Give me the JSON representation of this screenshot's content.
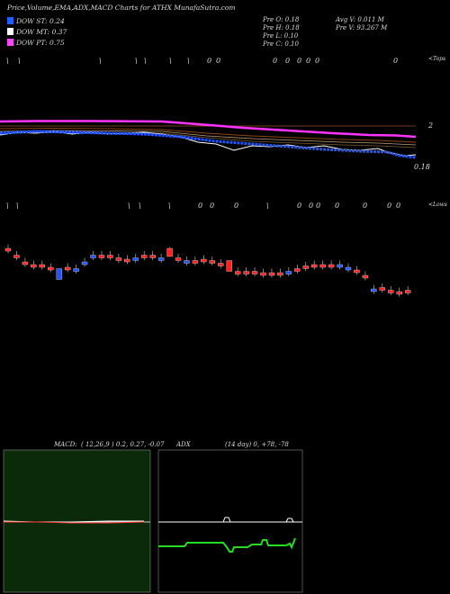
{
  "title": "Price,Volume,EMA,ADX,MACD Charts for ATHX  MunafaSutra.com",
  "legend": [
    {
      "label": "DOW ST: 0.24",
      "color": "#1f5fff"
    },
    {
      "label": "DOW MT: 0.37",
      "color": "#ffffff"
    },
    {
      "label": "DOW PT: 0.75",
      "color": "#ff44ff"
    }
  ],
  "ohlc": {
    "open": "Pre  O: 0.18",
    "high": "Pre  H: 0.18",
    "low": "Pre  L: 0.10",
    "close": "Pre  C: 0.10"
  },
  "volume": {
    "avg": "Avg V: 0.011 M",
    "pre": "Pre  V: 93.267 M"
  },
  "labels": {
    "tops": "<Tops",
    "lows": "<Lows",
    "ema_right": "2",
    "ema_price": "0.18",
    "macd_title": "MACD:",
    "macd_values": "( 12,26,9 ) 0.2, 0.27, -0.07",
    "adx_title": "ADX",
    "adx_values": "(14  day) 0, +78, -78"
  },
  "top_markers": [
    "\\",
    "\\",
    "\\",
    "\\",
    "\\",
    "\\",
    "\\",
    "0",
    "0",
    "0",
    "0",
    "0",
    "0",
    "0",
    "0"
  ],
  "low_markers": [
    "\\",
    "\\",
    "\\",
    "\\",
    "\\",
    "0",
    "0",
    "0",
    "\\",
    "0",
    "0",
    "0",
    "0",
    "0",
    "0",
    "0"
  ],
  "colors": {
    "bull": "#2255ff",
    "bear": "#ff2222",
    "ema_pink": "#ff33ff",
    "macd_bg": "#0a2a0a",
    "adx_bg": "#000000",
    "adx_green": "#22dd22"
  },
  "chart_data": {
    "type": "candlestick",
    "candles": [
      {
        "c": "bear",
        "y": 0.16
      },
      {
        "c": "bear",
        "y": 0.155
      },
      {
        "c": "bear",
        "y": 0.15
      },
      {
        "c": "bear",
        "y": 0.148
      },
      {
        "c": "bear",
        "y": 0.148
      },
      {
        "c": "bear",
        "y": 0.146
      },
      {
        "c": "bull",
        "y": 0.142
      },
      {
        "c": "bear",
        "y": 0.146
      },
      {
        "c": "bull",
        "y": 0.145
      },
      {
        "c": "bull",
        "y": 0.15
      },
      {
        "c": "bull",
        "y": 0.155
      },
      {
        "c": "bear",
        "y": 0.155
      },
      {
        "c": "bear",
        "y": 0.155
      },
      {
        "c": "bear",
        "y": 0.153
      },
      {
        "c": "bear",
        "y": 0.152
      },
      {
        "c": "bull",
        "y": 0.153
      },
      {
        "c": "bear",
        "y": 0.155
      },
      {
        "c": "bear",
        "y": 0.155
      },
      {
        "c": "bull",
        "y": 0.153
      },
      {
        "c": "bear",
        "y": 0.158
      },
      {
        "c": "bear",
        "y": 0.153
      },
      {
        "c": "bull",
        "y": 0.151
      },
      {
        "c": "bear",
        "y": 0.151
      },
      {
        "c": "bear",
        "y": 0.152
      },
      {
        "c": "bear",
        "y": 0.151
      },
      {
        "c": "bear",
        "y": 0.149
      },
      {
        "c": "bear",
        "y": 0.148
      },
      {
        "c": "bear",
        "y": 0.143
      },
      {
        "c": "bear",
        "y": 0.143
      },
      {
        "c": "bear",
        "y": 0.143
      },
      {
        "c": "bear",
        "y": 0.142
      },
      {
        "c": "bear",
        "y": 0.142
      },
      {
        "c": "bear",
        "y": 0.142
      },
      {
        "c": "bull",
        "y": 0.143
      },
      {
        "c": "bear",
        "y": 0.145
      },
      {
        "c": "bear",
        "y": 0.147
      },
      {
        "c": "bear",
        "y": 0.148
      },
      {
        "c": "bear",
        "y": 0.148
      },
      {
        "c": "bear",
        "y": 0.148
      },
      {
        "c": "bull",
        "y": 0.148
      },
      {
        "c": "bull",
        "y": 0.146
      },
      {
        "c": "bear",
        "y": 0.144
      },
      {
        "c": "bear",
        "y": 0.14
      },
      {
        "c": "bull",
        "y": 0.13
      },
      {
        "c": "bear",
        "y": 0.131
      },
      {
        "c": "bear",
        "y": 0.129
      },
      {
        "c": "bear",
        "y": 0.128
      },
      {
        "c": "bear",
        "y": 0.129
      }
    ],
    "adx": 0,
    "plus_di": 78,
    "minus_di": 78,
    "macd": 0.2,
    "signal": 0.27,
    "hist": -0.07
  }
}
